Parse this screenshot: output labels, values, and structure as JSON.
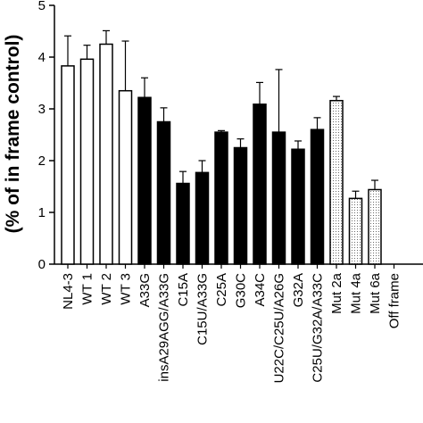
{
  "chart_data": {
    "type": "bar",
    "ylabel": "(% of in frame control)",
    "ylim": [
      0,
      5
    ],
    "yticks": [
      "0",
      "1",
      "2",
      "3",
      "4",
      "5"
    ],
    "grid": false,
    "legend": "none",
    "categories": [
      "NL4-3",
      "WT 1",
      "WT 2",
      "WT 3",
      "A33G",
      "insA29AGG/A33G",
      "C15A",
      "C15U/A33G",
      "C25A",
      "G30C",
      "A34C",
      "U22C/C25U/A26G",
      "G32A",
      "C25U/G32A/A33C",
      "Mut 2a",
      "Mut 4a",
      "Mut 6a",
      "Off frame"
    ],
    "values": [
      3.83,
      3.96,
      4.25,
      3.35,
      3.22,
      2.75,
      1.56,
      1.77,
      2.55,
      2.25,
      3.09,
      2.55,
      2.22,
      2.6,
      3.16,
      1.27,
      1.44,
      0
    ],
    "errors": [
      0.58,
      0.27,
      0.26,
      0.96,
      0.38,
      0.27,
      0.23,
      0.23,
      0.03,
      0.17,
      0.42,
      1.21,
      0.16,
      0.23,
      0.08,
      0.14,
      0.18,
      0
    ],
    "fills": [
      "open",
      "open",
      "open",
      "open",
      "solid",
      "solid",
      "solid",
      "solid",
      "solid",
      "solid",
      "solid",
      "solid",
      "solid",
      "solid",
      "dotted",
      "dotted",
      "dotted",
      "none"
    ],
    "colors": {
      "open": "#ffffff",
      "solid": "#000000",
      "dotted": "#ffffff",
      "stroke": "#000000"
    }
  }
}
